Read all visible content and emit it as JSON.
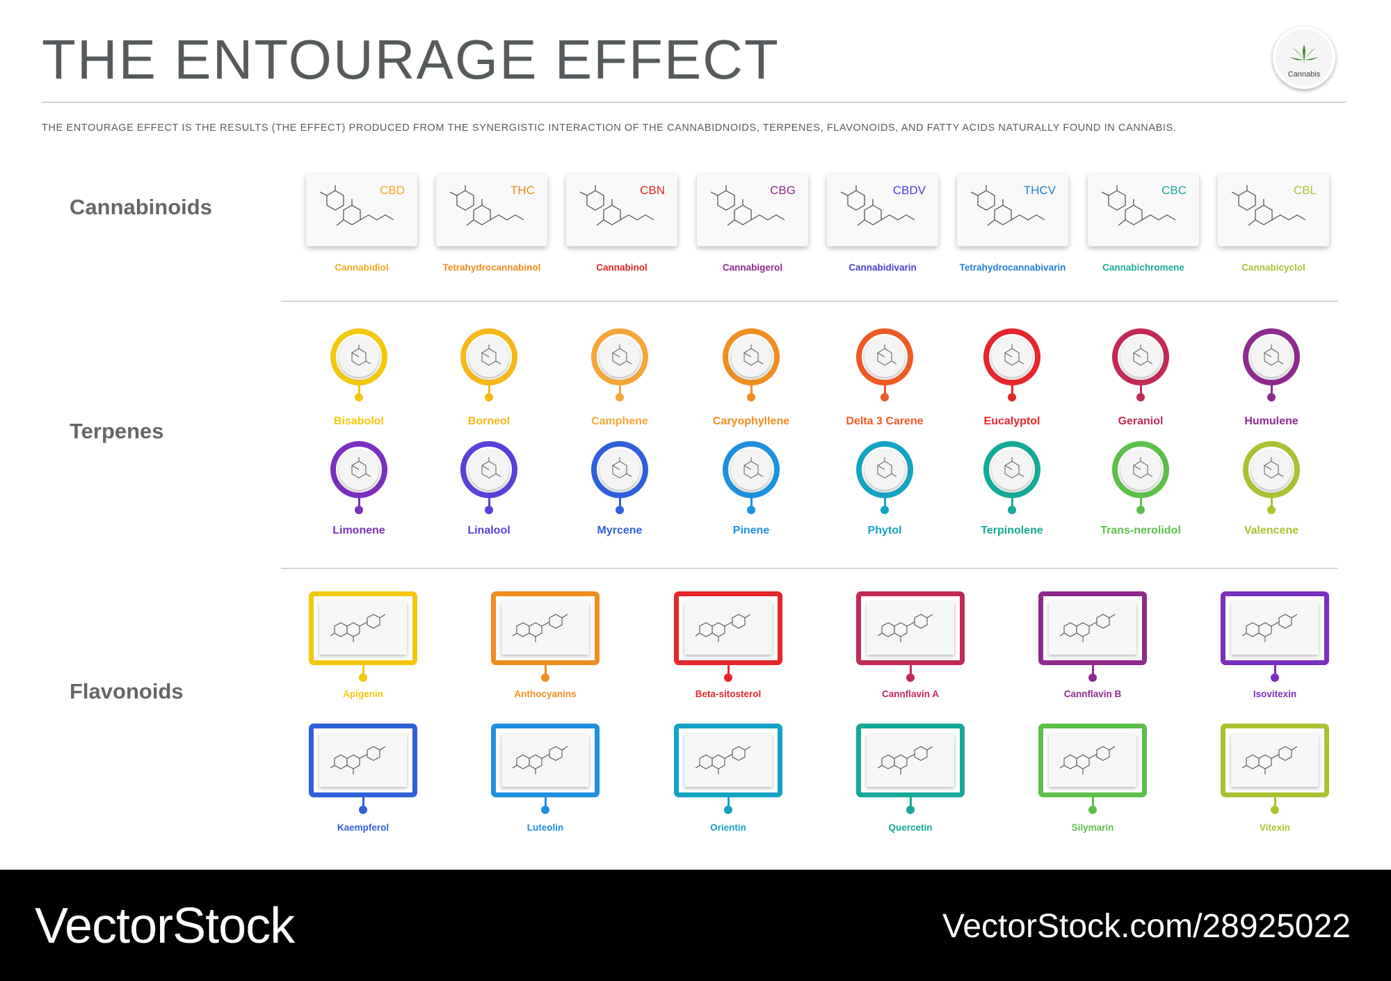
{
  "title": "THE ENTOURAGE EFFECT",
  "subtitle": "THE ENTOURAGE EFFECT IS THE RESULTS (THE EFFECT) PRODUCED FROM THE SYNERGISTIC INTERACTION OF THE CANNABIDNOIDS, TERPENES, FLAVONOIDS, AND FATTY ACIDS NATURALLY FOUND IN CANNABIS.",
  "logo": {
    "label": "Cannabis",
    "icon": "cannabis-leaf-icon"
  },
  "sections": {
    "cannabinoids": "Cannabinoids",
    "terpenes": "Terpenes",
    "flavonoids": "Flavonoids"
  },
  "cannabinoids": [
    {
      "abbr": "CBD",
      "name": "Cannabidiol",
      "color": "#f5a623"
    },
    {
      "abbr": "THC",
      "name": "Tetrahydrocannabinol",
      "color": "#f08a1c"
    },
    {
      "abbr": "CBN",
      "name": "Cannabinol",
      "color": "#e02424"
    },
    {
      "abbr": "CBG",
      "name": "Cannabigerol",
      "color": "#8e2a8e"
    },
    {
      "abbr": "CBDV",
      "name": "Cannabidivarin",
      "color": "#4a3fd1"
    },
    {
      "abbr": "THCV",
      "name": "Tetrahydrocannabivarin",
      "color": "#1e7fd8"
    },
    {
      "abbr": "CBC",
      "name": "Cannabichromene",
      "color": "#17a99a"
    },
    {
      "abbr": "CBL",
      "name": "Cannabicyclol",
      "color": "#a5c23a"
    }
  ],
  "terpenes_row1": [
    {
      "name": "Bisabolol",
      "color": "#f2c80f"
    },
    {
      "name": "Borneol",
      "color": "#f5b818"
    },
    {
      "name": "Camphene",
      "color": "#f5a638"
    },
    {
      "name": "Caryophyllene",
      "color": "#f08d20"
    },
    {
      "name": "Delta 3 Carene",
      "color": "#ee5a24"
    },
    {
      "name": "Eucalyptol",
      "color": "#e5262a"
    },
    {
      "name": "Geraniol",
      "color": "#c22a56"
    },
    {
      "name": "Humulene",
      "color": "#8e2a8e"
    }
  ],
  "terpenes_row2": [
    {
      "name": "Limonene",
      "color": "#7b2fbf"
    },
    {
      "name": "Linalool",
      "color": "#5b3fd9"
    },
    {
      "name": "Myrcene",
      "color": "#2f5fd9"
    },
    {
      "name": "Pinene",
      "color": "#1e90e0"
    },
    {
      "name": "Phytol",
      "color": "#14a3c2"
    },
    {
      "name": "Terpinolene",
      "color": "#16a898"
    },
    {
      "name": "Trans-nerolidol",
      "color": "#5cbf4a"
    },
    {
      "name": "Valencene",
      "color": "#a9c232"
    }
  ],
  "flavonoids_row1": [
    {
      "name": "Apigenin",
      "color": "#f2c80f"
    },
    {
      "name": "Anthocyanins",
      "color": "#f08d20"
    },
    {
      "name": "Beta-sitosterol",
      "color": "#e5262a"
    },
    {
      "name": "Cannflavin A",
      "color": "#c22a56"
    },
    {
      "name": "Cannflavin B",
      "color": "#8e2a8e"
    },
    {
      "name": "Isovitexin",
      "color": "#7b2fbf"
    }
  ],
  "flavonoids_row2": [
    {
      "name": "Kaempferol",
      "color": "#2f5fd9"
    },
    {
      "name": "Luteolin",
      "color": "#1e90e0"
    },
    {
      "name": "Orientin",
      "color": "#14a3c2"
    },
    {
      "name": "Quercetin",
      "color": "#16a898"
    },
    {
      "name": "Silymarin",
      "color": "#5cbf4a"
    },
    {
      "name": "Vitexin",
      "color": "#a9c232"
    }
  ],
  "footer": {
    "brand": "VectorStock",
    "url": "VectorStock.com/28925022"
  }
}
